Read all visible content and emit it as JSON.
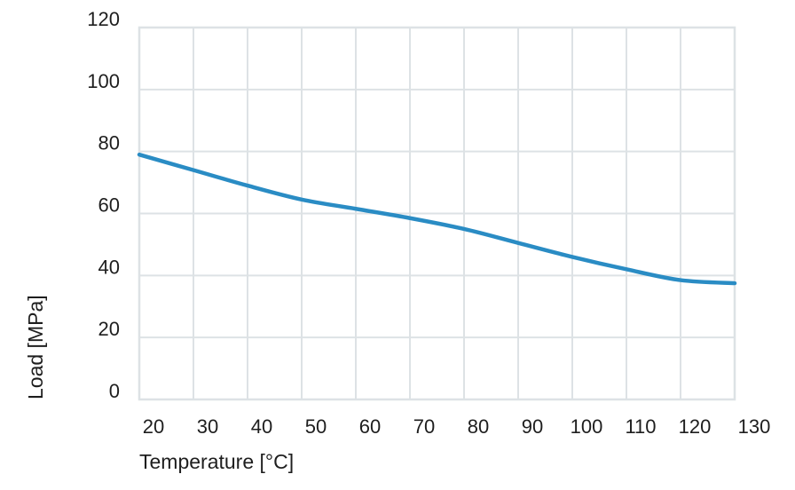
{
  "chart_data": {
    "type": "line",
    "title": "",
    "xlabel": "Temperature [°C]",
    "ylabel": "Load [MPa]",
    "xlim": [
      20,
      130
    ],
    "ylim": [
      0,
      120
    ],
    "x_ticks": [
      "20",
      "30",
      "40",
      "50",
      "60",
      "70",
      "80",
      "90",
      "100",
      "110",
      "120",
      "130"
    ],
    "y_ticks": [
      "0",
      "20",
      "40",
      "60",
      "80",
      "100",
      "120"
    ],
    "grid": true,
    "legend": "none",
    "line_color": "#2a8cc4",
    "grid_color": "#dde2e5",
    "series": [
      {
        "x": [
          20,
          30,
          40,
          50,
          60,
          70,
          80,
          90,
          100,
          110,
          120,
          130
        ],
        "values": [
          79,
          74,
          69,
          64.5,
          61.5,
          58.5,
          55,
          50.5,
          46,
          42,
          38.5,
          37.5
        ]
      }
    ]
  }
}
